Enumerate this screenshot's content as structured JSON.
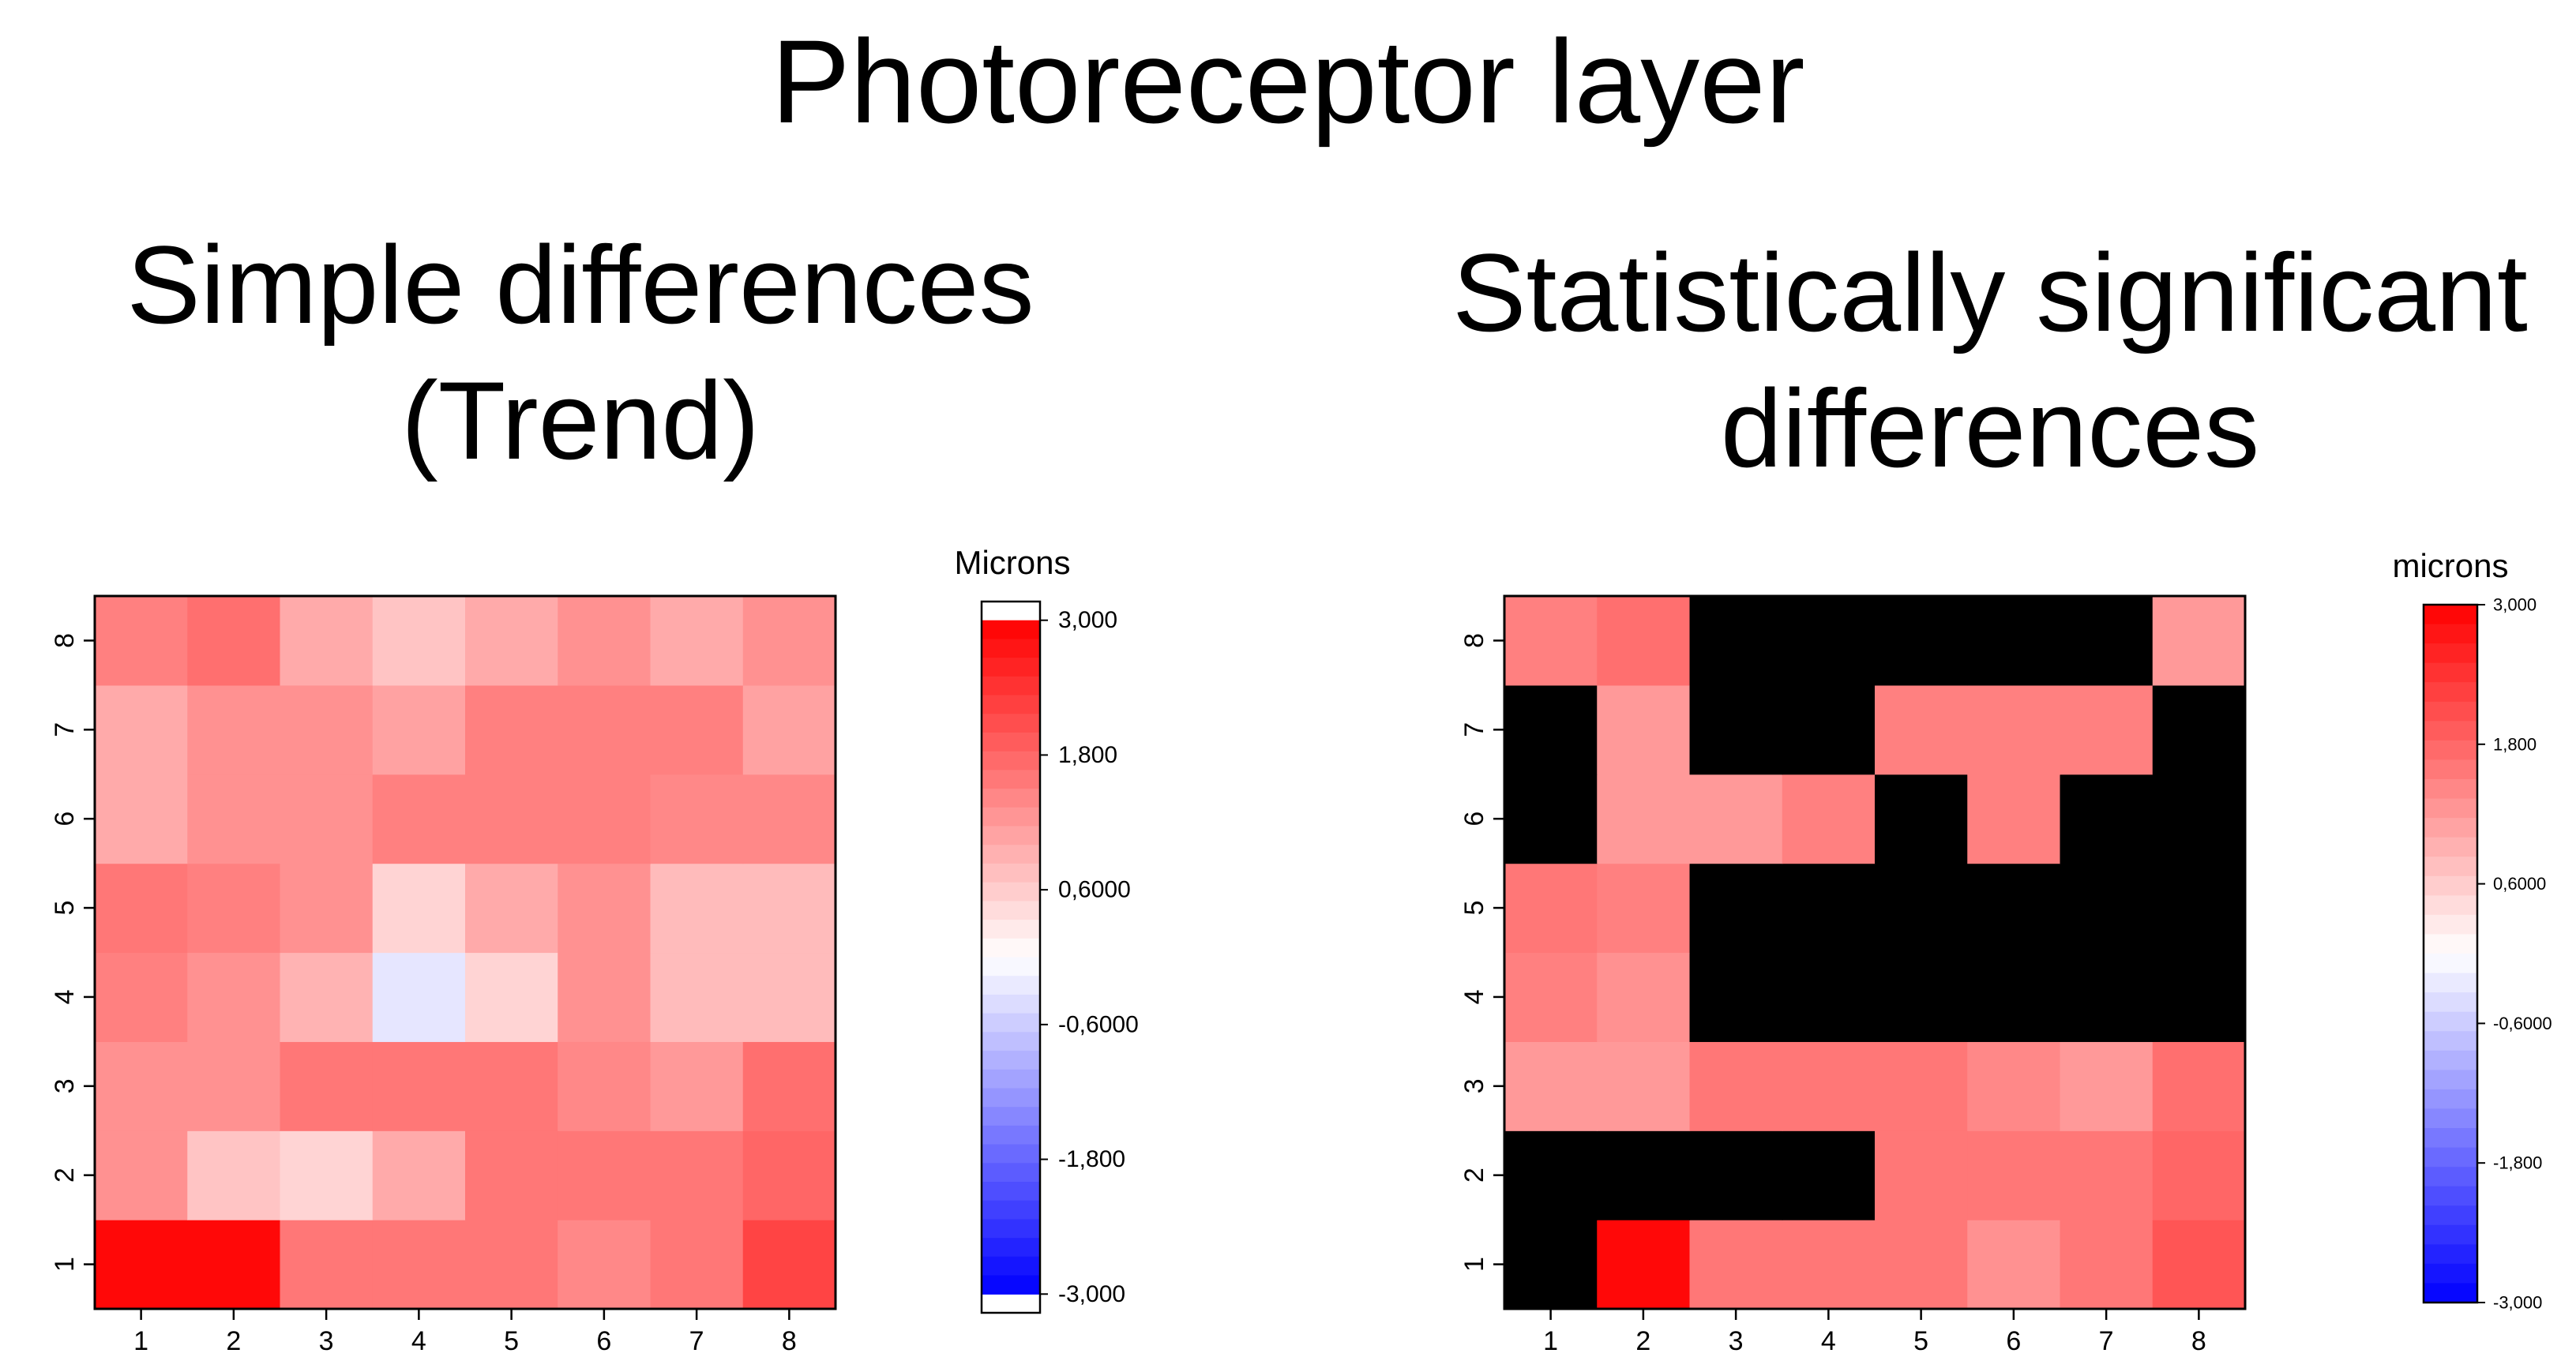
{
  "figure_title": "Photoreceptor layer",
  "colors": {
    "scale_low": "#0000FF",
    "scale_mid": "#FFFFFF",
    "scale_high": "#FF0000",
    "nonsignificant": "#000000"
  },
  "chart_data": [
    {
      "type": "heatmap",
      "title": "Simple differences",
      "subtitle": "(Trend)",
      "x": [
        "1",
        "2",
        "3",
        "4",
        "5",
        "6",
        "7",
        "8"
      ],
      "y": [
        "1",
        "2",
        "3",
        "4",
        "5",
        "6",
        "7",
        "8"
      ],
      "values": [
        [
          2.9,
          2.9,
          1.6,
          1.6,
          1.6,
          1.4,
          1.6,
          2.2
        ],
        [
          1.3,
          0.7,
          0.5,
          1.0,
          1.6,
          1.6,
          1.6,
          1.8
        ],
        [
          1.3,
          1.3,
          1.6,
          1.6,
          1.6,
          1.4,
          1.2,
          1.7
        ],
        [
          1.5,
          1.3,
          0.9,
          -0.3,
          0.5,
          1.3,
          0.8,
          0.8
        ],
        [
          1.6,
          1.5,
          1.3,
          0.5,
          1.0,
          1.3,
          0.8,
          0.8
        ],
        [
          1.0,
          1.3,
          1.3,
          1.5,
          1.5,
          1.5,
          1.4,
          1.4
        ],
        [
          1.0,
          1.3,
          1.3,
          1.1,
          1.5,
          1.5,
          1.5,
          1.1
        ],
        [
          1.5,
          1.7,
          1.0,
          0.7,
          1.0,
          1.3,
          1.0,
          1.3
        ]
      ],
      "colorbar": {
        "label": "Microns",
        "range": [
          -3.0,
          3.0
        ],
        "ticks": [
          {
            "value": 3.0,
            "label": "3,000"
          },
          {
            "value": 1.8,
            "label": "1,800"
          },
          {
            "value": 0.6,
            "label": "0,6000"
          },
          {
            "value": -0.6,
            "label": "-0,6000"
          },
          {
            "value": -1.8,
            "label": "-1,800"
          },
          {
            "value": -3.0,
            "label": "-3,000"
          }
        ]
      }
    },
    {
      "type": "heatmap",
      "title": "Statistically significant",
      "subtitle": "differences",
      "x": [
        "1",
        "2",
        "3",
        "4",
        "5",
        "6",
        "7",
        "8"
      ],
      "y": [
        "1",
        "2",
        "3",
        "4",
        "5",
        "6",
        "7",
        "8"
      ],
      "note": "null = not significant (drawn black)",
      "values": [
        [
          null,
          2.9,
          1.6,
          1.6,
          1.6,
          1.3,
          1.6,
          2.0
        ],
        [
          null,
          null,
          null,
          null,
          1.6,
          1.6,
          1.6,
          1.8
        ],
        [
          1.2,
          1.2,
          1.6,
          1.6,
          1.6,
          1.4,
          1.2,
          1.7
        ],
        [
          1.5,
          1.3,
          null,
          null,
          null,
          null,
          null,
          null
        ],
        [
          1.6,
          1.5,
          null,
          null,
          null,
          null,
          null,
          null
        ],
        [
          null,
          1.2,
          1.2,
          1.5,
          null,
          1.5,
          null,
          null
        ],
        [
          null,
          1.2,
          null,
          null,
          1.5,
          1.5,
          1.5,
          null
        ],
        [
          1.5,
          1.7,
          null,
          null,
          null,
          null,
          null,
          1.2
        ]
      ],
      "colorbar": {
        "label": "microns",
        "range": [
          -3.0,
          3.0
        ],
        "ticks": [
          {
            "value": 3.0,
            "label": "3,000"
          },
          {
            "value": 1.8,
            "label": "1,800"
          },
          {
            "value": 0.6,
            "label": "0,6000"
          },
          {
            "value": -0.6,
            "label": "-0,6000"
          },
          {
            "value": -1.8,
            "label": "-1,800"
          },
          {
            "value": -3.0,
            "label": "-3,000"
          }
        ]
      }
    }
  ]
}
